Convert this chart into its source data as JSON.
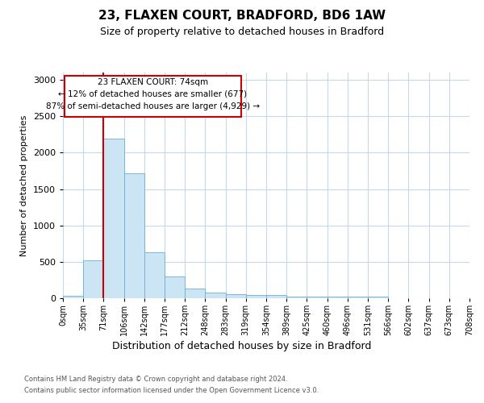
{
  "title": "23, FLAXEN COURT, BRADFORD, BD6 1AW",
  "subtitle": "Size of property relative to detached houses in Bradford",
  "xlabel": "Distribution of detached houses by size in Bradford",
  "ylabel": "Number of detached properties",
  "bar_values": [
    30,
    525,
    2190,
    1720,
    630,
    295,
    130,
    75,
    50,
    40,
    40,
    25,
    25,
    22,
    20,
    20,
    0,
    0,
    0,
    0
  ],
  "bin_labels": [
    "0sqm",
    "35sqm",
    "71sqm",
    "106sqm",
    "142sqm",
    "177sqm",
    "212sqm",
    "248sqm",
    "283sqm",
    "319sqm",
    "354sqm",
    "389sqm",
    "425sqm",
    "460sqm",
    "496sqm",
    "531sqm",
    "566sqm",
    "602sqm",
    "637sqm",
    "673sqm",
    "708sqm"
  ],
  "bar_color": "#cce5f5",
  "bar_edge_color": "#6aaed6",
  "property_line_x": 2,
  "annotation_text_line1": "23 FLAXEN COURT: 74sqm",
  "annotation_text_line2": "← 12% of detached houses are smaller (677)",
  "annotation_text_line3": "87% of semi-detached houses are larger (4,929) →",
  "annotation_box_color": "#cc0000",
  "ylim": [
    0,
    3100
  ],
  "yticks": [
    0,
    500,
    1000,
    1500,
    2000,
    2500,
    3000
  ],
  "background_color": "#ffffff",
  "grid_color": "#c8d8e8",
  "footer_line1": "Contains HM Land Registry data © Crown copyright and database right 2024.",
  "footer_line2": "Contains public sector information licensed under the Open Government Licence v3.0."
}
